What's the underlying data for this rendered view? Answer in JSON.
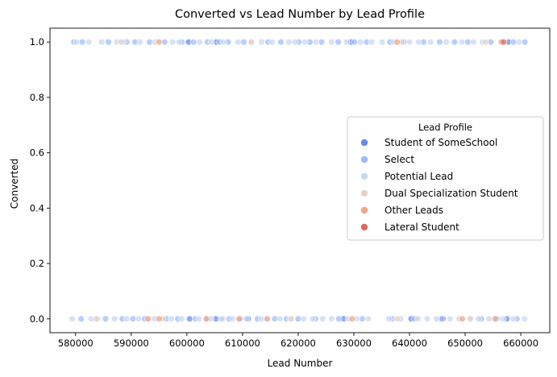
{
  "chart_data": {
    "type": "scatter",
    "title": "Converted vs Lead Number by Lead Profile",
    "xlabel": "Lead Number",
    "ylabel": "Converted",
    "xlim": [
      575400,
      665200
    ],
    "ylim": [
      -0.05,
      1.05
    ],
    "x_ticks": [
      580000,
      590000,
      600000,
      610000,
      620000,
      630000,
      640000,
      650000,
      660000
    ],
    "y_ticks": [
      0.0,
      0.2,
      0.4,
      0.6,
      0.8,
      1.0
    ],
    "x_tick_labels": [
      "580000",
      "590000",
      "600000",
      "610000",
      "620000",
      "630000",
      "640000",
      "650000",
      "660000"
    ],
    "y_tick_labels": [
      "0.0",
      "0.2",
      "0.4",
      "0.6",
      "0.8",
      "1.0"
    ],
    "grid": false,
    "legend": {
      "title": "Lead Profile",
      "position": "center-right"
    },
    "series": [
      {
        "name": "Student of SomeSchool",
        "color": "#6788ee",
        "points": [
          [
            600500,
            0
          ],
          [
            605200,
            0
          ],
          [
            611000,
            0
          ],
          [
            628200,
            0
          ],
          [
            640300,
            0
          ],
          [
            646000,
            0
          ],
          [
            657500,
            0
          ],
          [
            600300,
            1
          ],
          [
            605300,
            1
          ],
          [
            629500,
            1
          ],
          [
            657800,
            1
          ]
        ]
      },
      {
        "name": "Select",
        "color": "#9abbff",
        "points": [
          [
            581000,
            0
          ],
          [
            585400,
            0
          ],
          [
            588400,
            0
          ],
          [
            590300,
            0
          ],
          [
            592400,
            0
          ],
          [
            596300,
            0
          ],
          [
            598400,
            0
          ],
          [
            601500,
            0
          ],
          [
            603600,
            0
          ],
          [
            606400,
            0
          ],
          [
            607600,
            0
          ],
          [
            609600,
            0
          ],
          [
            612700,
            0
          ],
          [
            615800,
            0
          ],
          [
            617900,
            0
          ],
          [
            620000,
            0
          ],
          [
            623100,
            0
          ],
          [
            627300,
            0
          ],
          [
            631500,
            0
          ],
          [
            636900,
            0
          ],
          [
            640900,
            0
          ],
          [
            645700,
            0
          ],
          [
            652900,
            0
          ],
          [
            655700,
            0
          ],
          [
            659300,
            0
          ],
          [
            579700,
            1
          ],
          [
            581200,
            1
          ],
          [
            585900,
            1
          ],
          [
            589200,
            1
          ],
          [
            590700,
            1
          ],
          [
            593300,
            1
          ],
          [
            596000,
            1
          ],
          [
            599100,
            1
          ],
          [
            601200,
            1
          ],
          [
            603700,
            1
          ],
          [
            605900,
            1
          ],
          [
            607400,
            1
          ],
          [
            610200,
            1
          ],
          [
            614600,
            1
          ],
          [
            616900,
            1
          ],
          [
            620100,
            1
          ],
          [
            622100,
            1
          ],
          [
            624200,
            1
          ],
          [
            627200,
            1
          ],
          [
            630100,
            1
          ],
          [
            632300,
            1
          ],
          [
            636500,
            1
          ],
          [
            639000,
            1
          ],
          [
            642500,
            1
          ],
          [
            645400,
            1
          ],
          [
            648100,
            1
          ],
          [
            650500,
            1
          ],
          [
            654600,
            1
          ],
          [
            658700,
            1
          ],
          [
            660700,
            1
          ]
        ]
      },
      {
        "name": "Potential Lead",
        "color": "#c9d7f0",
        "points": [
          [
            579400,
            0
          ],
          [
            582800,
            0
          ],
          [
            584000,
            0
          ],
          [
            587000,
            0
          ],
          [
            589200,
            0
          ],
          [
            591300,
            0
          ],
          [
            593200,
            0
          ],
          [
            594200,
            0
          ],
          [
            597200,
            0
          ],
          [
            599100,
            0
          ],
          [
            602200,
            0
          ],
          [
            604300,
            0
          ],
          [
            606200,
            0
          ],
          [
            608200,
            0
          ],
          [
            610700,
            0
          ],
          [
            613400,
            0
          ],
          [
            614600,
            0
          ],
          [
            616700,
            0
          ],
          [
            618500,
            0
          ],
          [
            621000,
            0
          ],
          [
            622600,
            0
          ],
          [
            624400,
            0
          ],
          [
            626000,
            0
          ],
          [
            629000,
            0
          ],
          [
            630500,
            0
          ],
          [
            632600,
            0
          ],
          [
            636300,
            0
          ],
          [
            638400,
            0
          ],
          [
            641500,
            0
          ],
          [
            643200,
            0
          ],
          [
            644800,
            0
          ],
          [
            647300,
            0
          ],
          [
            648900,
            0
          ],
          [
            651000,
            0
          ],
          [
            652400,
            0
          ],
          [
            654300,
            0
          ],
          [
            656800,
            0
          ],
          [
            658600,
            0
          ],
          [
            660700,
            0
          ],
          [
            580200,
            1
          ],
          [
            582400,
            1
          ],
          [
            584700,
            1
          ],
          [
            587400,
            1
          ],
          [
            588600,
            1
          ],
          [
            591600,
            1
          ],
          [
            594300,
            1
          ],
          [
            597400,
            1
          ],
          [
            598600,
            1
          ],
          [
            602300,
            1
          ],
          [
            604400,
            1
          ],
          [
            606600,
            1
          ],
          [
            609200,
            1
          ],
          [
            611500,
            1
          ],
          [
            613400,
            1
          ],
          [
            615300,
            1
          ],
          [
            618300,
            1
          ],
          [
            619400,
            1
          ],
          [
            621200,
            1
          ],
          [
            623200,
            1
          ],
          [
            626000,
            1
          ],
          [
            628700,
            1
          ],
          [
            631200,
            1
          ],
          [
            633200,
            1
          ],
          [
            635100,
            1
          ],
          [
            637200,
            1
          ],
          [
            640000,
            1
          ],
          [
            641600,
            1
          ],
          [
            643800,
            1
          ],
          [
            646600,
            1
          ],
          [
            649400,
            1
          ],
          [
            651500,
            1
          ],
          [
            653100,
            1
          ],
          [
            656600,
            1
          ],
          [
            659700,
            1
          ]
        ]
      },
      {
        "name": "Dual Specialization Student",
        "color": "#e6d1c3",
        "points": [
          [
            583700,
            0
          ],
          [
            595600,
            0
          ],
          [
            618800,
            0
          ],
          [
            637800,
            0
          ],
          [
            650900,
            0
          ],
          [
            588200,
            1
          ],
          [
            611600,
            1
          ],
          [
            638600,
            1
          ],
          [
            653700,
            1
          ]
        ]
      },
      {
        "name": "Other Leads",
        "color": "#f1a585",
        "points": [
          [
            593000,
            0
          ],
          [
            595000,
            0
          ],
          [
            603500,
            0
          ],
          [
            609400,
            0
          ],
          [
            614400,
            0
          ],
          [
            629700,
            0
          ],
          [
            649500,
            0
          ],
          [
            655400,
            0
          ],
          [
            595000,
            1
          ],
          [
            637800,
            1
          ],
          [
            656500,
            1
          ]
        ]
      },
      {
        "name": "Lateral Student",
        "color": "#dd6b5c",
        "points": [
          [
            656900,
            1
          ]
        ]
      }
    ]
  }
}
